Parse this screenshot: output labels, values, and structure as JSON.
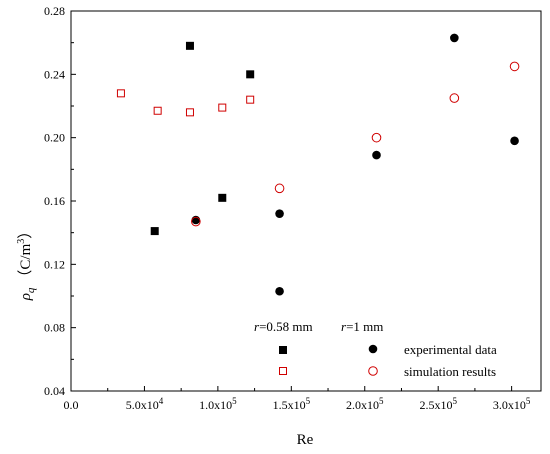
{
  "chart_data": {
    "type": "scatter",
    "xlabel": "Re",
    "ylabel": {
      "symbol": "ρ",
      "sub": "q",
      "unit": "（C/m",
      "sup": "3",
      "close": "）"
    },
    "xlim": [
      0,
      320000
    ],
    "ylim": [
      0.04,
      0.28
    ],
    "x_ticks": [
      {
        "value": 0,
        "mantissa": "0.0",
        "exp": ""
      },
      {
        "value": 50000,
        "mantissa": "5.0x10",
        "exp": "4"
      },
      {
        "value": 100000,
        "mantissa": "1.0x10",
        "exp": "5"
      },
      {
        "value": 150000,
        "mantissa": "1.5x10",
        "exp": "5"
      },
      {
        "value": 200000,
        "mantissa": "2.0x10",
        "exp": "5"
      },
      {
        "value": 250000,
        "mantissa": "2.5x10",
        "exp": "5"
      },
      {
        "value": 300000,
        "mantissa": "3.0x10",
        "exp": "5"
      }
    ],
    "y_ticks": [
      "0.04",
      "0.08",
      "0.12",
      "0.16",
      "0.20",
      "0.24",
      "0.28"
    ],
    "legend": {
      "placement": "bottom-right",
      "col1": {
        "r": "r",
        "text": "=0.58 mm"
      },
      "col2": {
        "r": "r",
        "text": "=1 mm"
      },
      "rows": [
        "experimental data",
        "simulation results"
      ]
    },
    "series": [
      {
        "group": "r=0.58 mm",
        "kind": "experimental data",
        "marker": "filled-square",
        "color": "#000000",
        "points": [
          [
            57000,
            0.141
          ],
          [
            81000,
            0.258
          ],
          [
            103000,
            0.162
          ],
          [
            122000,
            0.24
          ]
        ]
      },
      {
        "group": "r=0.58 mm",
        "kind": "simulation results",
        "marker": "open-square",
        "color": "#d00000",
        "points": [
          [
            34000,
            0.228
          ],
          [
            59000,
            0.217
          ],
          [
            81000,
            0.216
          ],
          [
            103000,
            0.219
          ],
          [
            122000,
            0.224
          ]
        ]
      },
      {
        "group": "r=1 mm",
        "kind": "experimental data",
        "marker": "filled-circle",
        "color": "#000000",
        "points": [
          [
            85000,
            0.148
          ],
          [
            142000,
            0.152
          ],
          [
            142000,
            0.103
          ],
          [
            208000,
            0.189
          ],
          [
            261000,
            0.263
          ],
          [
            302000,
            0.198
          ]
        ]
      },
      {
        "group": "r=1 mm",
        "kind": "simulation results",
        "marker": "open-circle",
        "color": "#d00000",
        "points": [
          [
            85000,
            0.147
          ],
          [
            142000,
            0.168
          ],
          [
            208000,
            0.2
          ],
          [
            261000,
            0.225
          ],
          [
            302000,
            0.245
          ]
        ]
      }
    ]
  }
}
